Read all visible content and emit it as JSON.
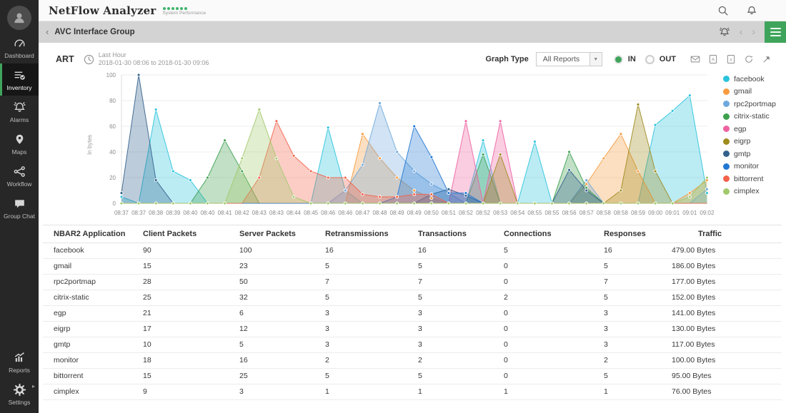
{
  "header": {
    "app_title": "NetFlow Analyzer",
    "subtitle": "System Performance",
    "icons": [
      "search-icon",
      "bell-icon"
    ]
  },
  "sidebar": {
    "items": [
      {
        "label": "Dashboard",
        "icon": "gauge-icon",
        "active": false
      },
      {
        "label": "Inventory",
        "icon": "inventory-icon",
        "active": true
      },
      {
        "label": "Alarms",
        "icon": "alarm-bell-icon",
        "active": false
      },
      {
        "label": "Maps",
        "icon": "map-pin-icon",
        "active": false
      },
      {
        "label": "Workflow",
        "icon": "workflow-icon",
        "active": false
      },
      {
        "label": "Group Chat",
        "icon": "chat-icon",
        "active": false
      }
    ],
    "bottom_items": [
      {
        "label": "Reports",
        "icon": "reports-icon",
        "active": false
      },
      {
        "label": "Settings",
        "icon": "gear-icon",
        "active": false
      }
    ]
  },
  "breadcrumb": {
    "back": "‹",
    "title": "AVC Interface Group",
    "prev": "‹",
    "next": "›",
    "icons": [
      "notification-bell-icon",
      "hamburger-menu-icon"
    ]
  },
  "toolbar": {
    "widget_title": "ART",
    "period_label": "Last Hour",
    "period_range": "2018-01-30 08:06 to 2018-01-30 09:06",
    "graph_type_label": "Graph Type",
    "graph_type_value": "All Reports",
    "radio_in": "IN",
    "radio_out": "OUT",
    "export_icons": [
      "email-icon",
      "pdf-export-icon",
      "excel-export-icon",
      "refresh-icon",
      "pin-icon"
    ]
  },
  "colors": {
    "accent_green": "#3fa45b",
    "sidebar_bg": "#272727",
    "breadcrumb_bg": "#d3d3d3"
  },
  "chart_data": {
    "type": "area",
    "title": "ART",
    "ylabel": "In bytes",
    "ylim": [
      0,
      100
    ],
    "yticks": [
      0,
      20,
      40,
      60,
      80,
      100
    ],
    "grid": true,
    "legend_position": "right",
    "x": [
      "08:37",
      "08:37",
      "08:38",
      "08:39",
      "08:40",
      "08:40",
      "08:41",
      "08:42",
      "08:43",
      "08:43",
      "08:44",
      "08:45",
      "08:46",
      "08:46",
      "08:47",
      "08:48",
      "08:49",
      "08:49",
      "08:50",
      "08:51",
      "08:52",
      "08:52",
      "08:53",
      "08:54",
      "08:55",
      "08:55",
      "08:56",
      "08:57",
      "08:58",
      "08:58",
      "08:59",
      "09:00",
      "09:01",
      "09:01",
      "09:02"
    ],
    "series": [
      {
        "name": "facebook",
        "color": "#2bc3dc",
        "values": [
          5,
          0,
          73,
          25,
          18,
          0,
          0,
          0,
          0,
          0,
          0,
          0,
          59,
          10,
          0,
          0,
          0,
          0,
          0,
          0,
          0,
          49,
          0,
          0,
          48,
          0,
          0,
          0,
          0,
          0,
          0,
          61,
          72,
          84,
          8
        ]
      },
      {
        "name": "gmail",
        "color": "#f79b3e",
        "values": [
          0,
          0,
          0,
          0,
          0,
          0,
          0,
          0,
          0,
          0,
          0,
          0,
          0,
          0,
          54,
          35,
          20,
          10,
          4,
          0,
          0,
          0,
          0,
          0,
          0,
          0,
          0,
          15,
          35,
          54,
          25,
          0,
          0,
          8,
          18
        ]
      },
      {
        "name": "rpc2portmap",
        "color": "#6fa8dc",
        "values": [
          0,
          0,
          0,
          0,
          0,
          0,
          0,
          0,
          0,
          0,
          0,
          0,
          0,
          10,
          30,
          78,
          40,
          25,
          15,
          8,
          0,
          0,
          0,
          0,
          0,
          0,
          0,
          18,
          0,
          0,
          0,
          0,
          0,
          0,
          11
        ]
      },
      {
        "name": "citrix-static",
        "color": "#3da04f",
        "values": [
          0,
          0,
          0,
          0,
          0,
          20,
          49,
          25,
          0,
          0,
          0,
          0,
          0,
          0,
          0,
          0,
          0,
          0,
          0,
          0,
          0,
          38,
          0,
          0,
          0,
          0,
          40,
          12,
          0,
          0,
          0,
          0,
          0,
          0,
          0
        ]
      },
      {
        "name": "egp",
        "color": "#ef62a2",
        "values": [
          0,
          0,
          0,
          0,
          0,
          0,
          0,
          0,
          0,
          0,
          0,
          0,
          0,
          0,
          0,
          0,
          0,
          0,
          0,
          0,
          64,
          0,
          64,
          0,
          0,
          0,
          0,
          0,
          0,
          0,
          0,
          0,
          0,
          0,
          0
        ]
      },
      {
        "name": "eigrp",
        "color": "#9f8b1e",
        "values": [
          0,
          0,
          0,
          0,
          0,
          0,
          0,
          0,
          0,
          0,
          0,
          0,
          0,
          0,
          0,
          0,
          0,
          0,
          0,
          0,
          0,
          0,
          38,
          0,
          0,
          0,
          0,
          0,
          0,
          10,
          77,
          25,
          0,
          0,
          0
        ]
      },
      {
        "name": "gmtp",
        "color": "#33618d",
        "values": [
          8,
          100,
          18,
          0,
          0,
          0,
          0,
          0,
          0,
          0,
          0,
          0,
          0,
          0,
          0,
          0,
          0,
          0,
          7,
          11,
          6,
          0,
          0,
          0,
          0,
          0,
          26,
          10,
          0,
          0,
          0,
          0,
          0,
          0,
          0
        ]
      },
      {
        "name": "monitor",
        "color": "#2278d4",
        "values": [
          0,
          0,
          0,
          0,
          0,
          0,
          0,
          0,
          0,
          0,
          0,
          0,
          0,
          0,
          0,
          0,
          5,
          60,
          36,
          8,
          8,
          0,
          0,
          0,
          0,
          0,
          0,
          0,
          0,
          0,
          0,
          0,
          0,
          0,
          0
        ]
      },
      {
        "name": "bittorrent",
        "color": "#f4624a",
        "values": [
          0,
          0,
          0,
          0,
          0,
          0,
          0,
          0,
          20,
          64,
          37,
          25,
          20,
          20,
          7,
          5,
          5,
          7,
          7,
          0,
          0,
          0,
          0,
          0,
          0,
          0,
          0,
          0,
          0,
          0,
          0,
          0,
          0,
          0,
          0
        ]
      },
      {
        "name": "cimplex",
        "color": "#a2c96c",
        "values": [
          0,
          0,
          0,
          0,
          0,
          0,
          0,
          35,
          73,
          35,
          5,
          0,
          0,
          0,
          0,
          0,
          0,
          0,
          0,
          0,
          0,
          0,
          0,
          0,
          0,
          0,
          0,
          0,
          0,
          0,
          0,
          0,
          0,
          5,
          20
        ]
      }
    ]
  },
  "table": {
    "columns": [
      "NBAR2 Application",
      "Client Packets",
      "Server Packets",
      "Retransmissions",
      "Transactions",
      "Connections",
      "Responses",
      "Traffic"
    ],
    "rows": [
      {
        "cells": [
          "facebook",
          "90",
          "100",
          "16",
          "16",
          "5",
          "16",
          "479.00 Bytes"
        ]
      },
      {
        "cells": [
          "gmail",
          "15",
          "23",
          "5",
          "5",
          "0",
          "5",
          "186.00 Bytes"
        ]
      },
      {
        "cells": [
          "rpc2portmap",
          "28",
          "50",
          "7",
          "7",
          "0",
          "7",
          "177.00 Bytes"
        ]
      },
      {
        "cells": [
          "citrix-static",
          "25",
          "32",
          "5",
          "5",
          "2",
          "5",
          "152.00 Bytes"
        ]
      },
      {
        "cells": [
          "egp",
          "21",
          "6",
          "3",
          "3",
          "0",
          "3",
          "141.00 Bytes"
        ]
      },
      {
        "cells": [
          "eigrp",
          "17",
          "12",
          "3",
          "3",
          "0",
          "3",
          "130.00 Bytes"
        ]
      },
      {
        "cells": [
          "gmtp",
          "10",
          "5",
          "3",
          "3",
          "0",
          "3",
          "117.00 Bytes"
        ]
      },
      {
        "cells": [
          "monitor",
          "18",
          "16",
          "2",
          "2",
          "0",
          "2",
          "100.00 Bytes"
        ]
      },
      {
        "cells": [
          "bittorrent",
          "15",
          "25",
          "5",
          "5",
          "0",
          "5",
          "95.00 Bytes"
        ]
      },
      {
        "cells": [
          "cimplex",
          "9",
          "3",
          "1",
          "1",
          "1",
          "1",
          "76.00 Bytes"
        ]
      }
    ]
  }
}
